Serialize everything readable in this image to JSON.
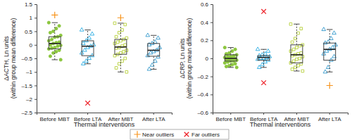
{
  "chart_data": [
    {
      "type": "box",
      "y_label": [
        "ΔACTH, Ln units",
        "(within group mean difference)"
      ],
      "x_label": "Thermal interventions",
      "categories": [
        "Before MBT",
        "Before LTA",
        "After MBT",
        "After LTA"
      ],
      "ylim": [
        -2.5,
        1.5
      ],
      "yticks": [
        {
          "value": -2.5,
          "label": "–2.5"
        },
        {
          "value": -2,
          "label": "–2"
        },
        {
          "value": -1.5,
          "label": "–1.5"
        },
        {
          "value": -1,
          "label": "–1"
        },
        {
          "value": -0.5,
          "label": "–0.5"
        },
        0,
        0.5,
        1,
        1.5
      ],
      "boxes": [
        {
          "color": "#8cc63f",
          "marker": "circle",
          "values": [
            0.82,
            0.7,
            0.6,
            0.5,
            0.45,
            0.35,
            0.3,
            0.28,
            0.2,
            0.15,
            0.1,
            0.08,
            0.05,
            0.0,
            -0.02,
            -0.05,
            -0.1,
            -0.12,
            -0.15,
            -0.2,
            -0.25,
            -0.3,
            -0.42,
            -0.55
          ],
          "q1": -0.15,
          "median": 0.05,
          "q3": 0.3,
          "whisker_low": -0.55,
          "whisker_high": 0.82,
          "near_outliers": [
            1.1
          ],
          "far_outliers": []
        },
        {
          "color": "#29abe2",
          "marker": "triangle",
          "values": [
            0.55,
            0.4,
            0.25,
            0.15,
            0.05,
            0,
            -0.05,
            -0.1,
            -0.2,
            -0.3,
            -0.4,
            -0.5,
            -0.6,
            -0.7
          ],
          "q1": -0.4,
          "median": -0.05,
          "q3": 0.15,
          "whisker_low": -0.7,
          "whisker_high": 0.55,
          "near_outliers": [],
          "far_outliers": [
            -2.15
          ]
        },
        {
          "color": "#b5cf38",
          "marker": "square",
          "values": [
            0.8,
            0.75,
            0.55,
            0.45,
            0.3,
            0.25,
            0.2,
            0.15,
            0.1,
            0.05,
            0,
            -0.05,
            -0.1,
            -0.12,
            -0.2,
            -0.25,
            -0.3,
            -0.35,
            -0.4,
            -0.5,
            -0.6,
            -0.7,
            -0.85,
            -1.0
          ],
          "q1": -0.35,
          "median": -0.08,
          "q3": 0.2,
          "whisker_low": -1.0,
          "whisker_high": 0.8,
          "near_outliers": [
            1.0
          ],
          "far_outliers": []
        },
        {
          "color": "#3399cc",
          "marker": "triangle",
          "values": [
            0.35,
            0.25,
            0.1,
            0.05,
            0,
            -0.1,
            -0.2,
            -0.25,
            -0.3,
            -0.4,
            -0.45,
            -0.6,
            -0.75,
            -0.9
          ],
          "q1": -0.42,
          "median": -0.2,
          "q3": 0.05,
          "whisker_low": -0.9,
          "whisker_high": 0.35,
          "near_outliers": [],
          "far_outliers": []
        }
      ]
    },
    {
      "type": "box",
      "y_label": [
        "ΔCRP, Ln units",
        "(within group mean difference)"
      ],
      "x_label": "Thermal interventions",
      "categories": [
        "Before MBT",
        "Before LTA",
        "After MBT",
        "After LTA"
      ],
      "ylim": [
        -0.6,
        0.6
      ],
      "yticks": [
        {
          "value": -0.6,
          "label": "–0.6"
        },
        {
          "value": -0.4,
          "label": "–0.4"
        },
        {
          "value": -0.2,
          "label": "–0.2"
        },
        0,
        0.2,
        0.4,
        0.6
      ],
      "boxes": [
        {
          "color": "#8cc63f",
          "marker": "circle",
          "values": [
            0.12,
            0.1,
            0.08,
            0.06,
            0.05,
            0.04,
            0.03,
            0.02,
            0.02,
            0.01,
            0,
            0,
            -0.01,
            -0.02,
            -0.02,
            -0.03,
            -0.03,
            -0.04,
            -0.05,
            -0.06,
            -0.07,
            -0.08,
            -0.09,
            -0.1
          ],
          "q1": -0.03,
          "median": 0,
          "q3": 0.04,
          "whisker_low": -0.1,
          "whisker_high": 0.12,
          "near_outliers": [],
          "far_outliers": []
        },
        {
          "color": "#29abe2",
          "marker": "triangle",
          "values": [
            0.1,
            0.08,
            0.05,
            0.04,
            0.03,
            0.02,
            0.01,
            0,
            0,
            -0.01,
            -0.02,
            -0.04,
            -0.07,
            -0.1
          ],
          "q1": -0.02,
          "median": 0.01,
          "q3": 0.03,
          "whisker_low": -0.1,
          "whisker_high": 0.1,
          "near_outliers": [],
          "far_outliers": [
            0.52,
            -0.27
          ]
        },
        {
          "color": "#b5cf38",
          "marker": "square",
          "values": [
            0.38,
            0.33,
            0.28,
            0.22,
            0.18,
            0.15,
            0.14,
            0.12,
            0.1,
            0.08,
            0.06,
            0.05,
            0.04,
            0.03,
            0.02,
            0,
            -0.01,
            -0.03,
            -0.05,
            -0.06,
            -0.08,
            -0.1,
            -0.12,
            -0.14
          ],
          "q1": -0.05,
          "median": 0.04,
          "q3": 0.15,
          "whisker_low": -0.14,
          "whisker_high": 0.38,
          "near_outliers": [],
          "far_outliers": []
        },
        {
          "color": "#3399cc",
          "marker": "triangle",
          "values": [
            0.32,
            0.28,
            0.22,
            0.18,
            0.17,
            0.15,
            0.12,
            0.1,
            0.08,
            0.05,
            0.02,
            -0.02,
            -0.1,
            -0.15
          ],
          "q1": -0.02,
          "median": 0.1,
          "q3": 0.17,
          "whisker_low": -0.15,
          "whisker_high": 0.32,
          "near_outliers": [
            -0.3
          ],
          "far_outliers": []
        }
      ]
    }
  ],
  "outlier_types": [
    {
      "name": "Near outliers",
      "marker": "plus",
      "color": "#f7941d"
    },
    {
      "name": "Far outliers",
      "marker": "times",
      "color": "#ed1c24"
    }
  ]
}
